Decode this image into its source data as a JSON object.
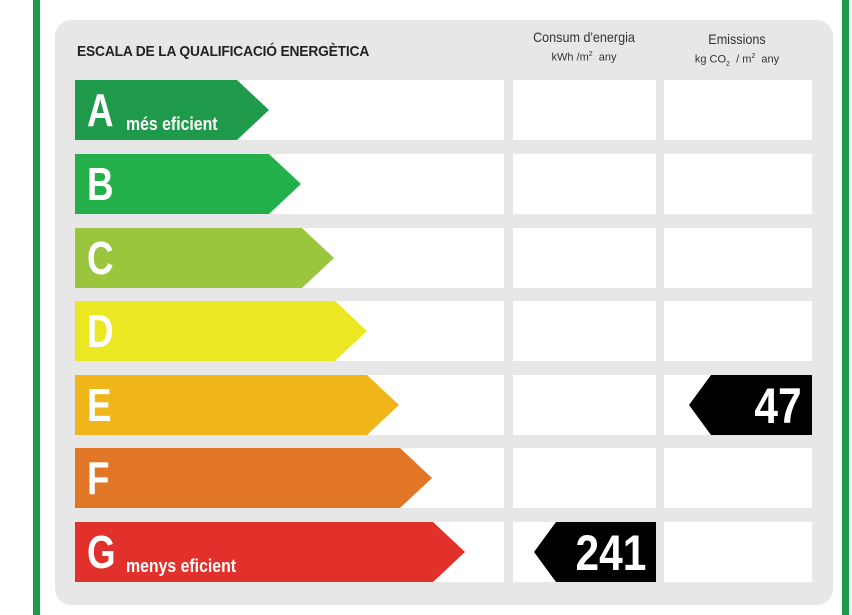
{
  "title": "ESCALA DE LA QUALIFICACIÓ ENERGÈTICA",
  "columns": {
    "consum": {
      "label": "Consum d'energia",
      "unit_pre": "kWh /m",
      "unit_sup": "2",
      "unit_post": "any"
    },
    "emissions": {
      "label": "Emissions",
      "unit_pre": "kg CO",
      "unit_sub": "2",
      "unit_mid": "/ m",
      "unit_sup": "2",
      "unit_post": "any"
    }
  },
  "grades": [
    {
      "letter": "A",
      "note": "més eficient",
      "color": "#1e9a4a"
    },
    {
      "letter": "B",
      "note": "",
      "color": "#23b04b"
    },
    {
      "letter": "C",
      "note": "",
      "color": "#9ac63e"
    },
    {
      "letter": "D",
      "note": "",
      "color": "#ebe722"
    },
    {
      "letter": "E",
      "note": "",
      "color": "#f0b619"
    },
    {
      "letter": "F",
      "note": "",
      "color": "#e27627"
    },
    {
      "letter": "G",
      "note": "menys eficient",
      "color": "#e2302b"
    }
  ],
  "ratings": {
    "consum": {
      "grade": "G",
      "value": "241"
    },
    "emissions": {
      "grade": "E",
      "value": "47"
    }
  },
  "colors": {
    "frame": "#1d9a4b",
    "panel": "#e7e7e7",
    "tag": "#000000"
  }
}
